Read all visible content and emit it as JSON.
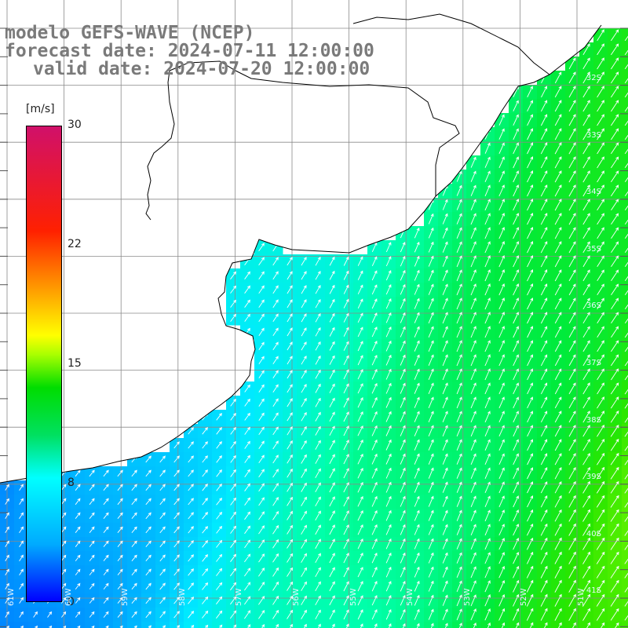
{
  "title": {
    "model": "modelo GEFS-WAVE (NCEP)",
    "forecast": "forecast date: 2024-07-11 12:00:00",
    "valid": "valid date: 2024-07-20 12:00:00"
  },
  "colorbar": {
    "unit": "[m/s]",
    "ticks": [
      {
        "label": "30",
        "value": 30
      },
      {
        "label": "22",
        "value": 22
      },
      {
        "label": "15",
        "value": 15
      },
      {
        "label": "8",
        "value": 8
      },
      {
        "label": "0",
        "value": 0
      }
    ]
  },
  "lat_labels": [
    "32S",
    "33S",
    "34S",
    "35S",
    "36S",
    "37S",
    "38S",
    "39S",
    "40S",
    "41S"
  ],
  "lon_labels": [
    "61W",
    "60W",
    "59W",
    "58W",
    "57W",
    "56W",
    "55W",
    "54W",
    "53W",
    "52W",
    "51W"
  ],
  "colors": {
    "land": "#ffffff",
    "coast": "#000000",
    "grid": "#888888",
    "arrow": "#ffffff"
  },
  "icons": [
    "wind-arrow-icon"
  ]
}
